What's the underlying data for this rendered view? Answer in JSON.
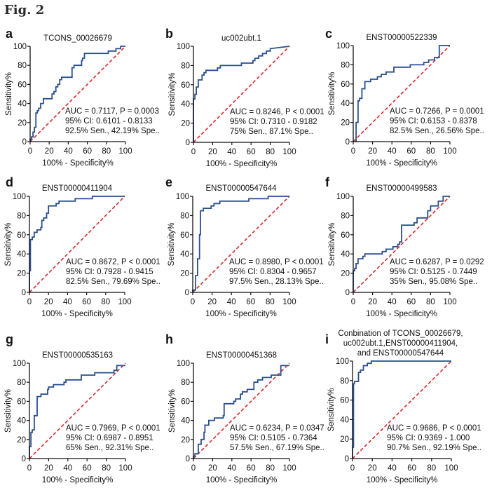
{
  "figure_title": "Fig. 2",
  "colors": {
    "roc_line": "#2a4f8f",
    "reference_line": "#d62a2a",
    "axis": "#111111"
  },
  "chart_data": [
    {
      "panel": "a",
      "type": "line",
      "title": "TCONS_00026679",
      "xlabel": "100% - Specificity%",
      "ylabel": "Sensitivity%",
      "xlim": [
        0,
        100
      ],
      "ylim": [
        0,
        100
      ],
      "xticks": [
        "0",
        "20",
        "40",
        "60",
        "80",
        "100"
      ],
      "yticks": [
        "0",
        "20",
        "40",
        "60",
        "80",
        "100"
      ],
      "annotation": [
        "AUC = 0.7117, P = 0.0003",
        "95% CI: 0.6101 - 0.8133",
        "92.5% Sen., 42.19% Spe.."
      ],
      "show_xlabel": true,
      "series": [
        {
          "name": "ROC",
          "x": [
            0,
            0,
            1.5,
            1.5,
            3,
            3,
            4.5,
            4.5,
            6,
            6,
            7.5,
            7.5,
            9,
            9,
            11,
            11,
            14,
            14,
            23,
            23,
            25,
            25,
            27,
            27,
            29,
            29,
            31,
            31,
            33,
            33,
            44,
            44,
            46,
            46,
            54,
            54,
            55,
            55,
            57,
            57,
            82,
            82,
            90,
            90,
            95,
            95,
            100
          ],
          "y": [
            0,
            2.5,
            2.5,
            5,
            5,
            10,
            10,
            15,
            15,
            30,
            30,
            32.5,
            32.5,
            35,
            35,
            40,
            40,
            45,
            45,
            50,
            50,
            52.5,
            52.5,
            57.5,
            57.5,
            60,
            60,
            65,
            65,
            67.5,
            67.5,
            77.5,
            77.5,
            80,
            80,
            85,
            85,
            87.5,
            87.5,
            92.5,
            92.5,
            95,
            95,
            97.5,
            97.5,
            100,
            100
          ]
        },
        {
          "name": "Reference",
          "x": [
            0,
            100
          ],
          "y": [
            0,
            100
          ]
        }
      ]
    },
    {
      "panel": "b",
      "type": "line",
      "title": "uc002ubt.1",
      "xlabel": "100% - Specificity%",
      "ylabel": "Sensitivity%",
      "xlim": [
        0,
        100
      ],
      "ylim": [
        0,
        100
      ],
      "xticks": [
        "0",
        "20",
        "40",
        "60",
        "80",
        "100"
      ],
      "yticks": [
        "0",
        "20",
        "40",
        "60",
        "80",
        "100"
      ],
      "annotation": [
        "AUC = 0.8246, P < 0.0001",
        "95% CI: 0.7310 - 0.9182",
        "75% Sen., 87.1% Spe.."
      ],
      "show_xlabel": true,
      "series": [
        {
          "name": "ROC",
          "x": [
            0,
            0,
            1.5,
            1.5,
            3,
            3,
            5,
            5,
            9,
            9,
            11,
            11,
            13,
            13,
            25,
            25,
            28,
            28,
            50,
            50,
            62,
            62,
            64,
            64,
            68,
            68,
            72,
            72,
            76,
            76,
            80,
            80,
            100
          ],
          "y": [
            0,
            45,
            45,
            50,
            50,
            57.5,
            57.5,
            65,
            65,
            70,
            70,
            72.5,
            72.5,
            75,
            75,
            77.5,
            77.5,
            80,
            80,
            82.5,
            82.5,
            85,
            85,
            87.5,
            87.5,
            90,
            90,
            92.5,
            92.5,
            95,
            95,
            97.5,
            100
          ]
        },
        {
          "name": "Reference",
          "x": [
            0,
            100
          ],
          "y": [
            0,
            100
          ]
        }
      ]
    },
    {
      "panel": "c",
      "type": "line",
      "title": "ENST00000522339",
      "xlabel": "100% - Specificity%",
      "ylabel": "Sensitivity%",
      "xlim": [
        0,
        100
      ],
      "ylim": [
        0,
        100
      ],
      "xticks": [
        "0",
        "20",
        "40",
        "60",
        "80",
        "100"
      ],
      "yticks": [
        "0",
        "20",
        "40",
        "60",
        "80",
        "100"
      ],
      "annotation": [
        "AUC = 0.7266, P = 0.0001",
        "95% CI: 0.6153 - 0.8378",
        "82.5% Sen., 26.56% Spe.."
      ],
      "show_xlabel": true,
      "series": [
        {
          "name": "ROC",
          "x": [
            2,
            3,
            3,
            5,
            5,
            6.5,
            6.5,
            9,
            9,
            12,
            12,
            18,
            18,
            25,
            25,
            29,
            29,
            34,
            34,
            42,
            42,
            59,
            59,
            73,
            73,
            78,
            78,
            84,
            84,
            89,
            89,
            90,
            90,
            100
          ],
          "y": [
            0,
            0,
            20,
            20,
            42.5,
            42.5,
            45,
            45,
            55,
            55,
            62.5,
            62.5,
            65,
            65,
            67.5,
            67.5,
            70,
            70,
            72.5,
            72.5,
            77.5,
            77.5,
            80,
            80,
            82.5,
            82.5,
            85,
            85,
            87.5,
            87.5,
            100,
            100,
            100,
            100
          ]
        },
        {
          "name": "Reference",
          "x": [
            0,
            100
          ],
          "y": [
            0,
            100
          ]
        }
      ]
    },
    {
      "panel": "d",
      "type": "line",
      "title": "ENST00000411904",
      "xlabel": "100% - Specificity%",
      "ylabel": "Sensitivity%",
      "xlim": [
        0,
        100
      ],
      "ylim": [
        0,
        100
      ],
      "xticks": [
        "0",
        "20",
        "40",
        "60",
        "80",
        "100"
      ],
      "yticks": [
        "0",
        "20",
        "40",
        "60",
        "80",
        "100"
      ],
      "annotation": [
        "AUC = 0.8672, P < 0.0001",
        "95% CI: 0.7928 - 0.9415",
        "82.5% Sen., 79.69% Spe.."
      ],
      "show_xlabel": true,
      "series": [
        {
          "name": "ROC",
          "x": [
            0,
            0,
            1,
            1,
            3,
            3,
            5,
            5,
            8,
            8,
            12,
            12,
            13,
            13,
            15,
            15,
            18,
            18,
            20,
            20,
            28,
            28,
            31,
            31,
            48,
            48,
            66,
            66,
            95,
            95,
            100
          ],
          "y": [
            0,
            22.5,
            22.5,
            55,
            55,
            57.5,
            57.5,
            62.5,
            62.5,
            65,
            65,
            67.5,
            67.5,
            75,
            75,
            77.5,
            77.5,
            82.5,
            82.5,
            90,
            90,
            92.5,
            92.5,
            95,
            95,
            97.5,
            97.5,
            100,
            100,
            100,
            100
          ]
        },
        {
          "name": "Reference",
          "x": [
            0,
            100
          ],
          "y": [
            0,
            100
          ]
        }
      ]
    },
    {
      "panel": "e",
      "type": "line",
      "title": "ENST00000547644",
      "xlabel": "100% - Specificity%",
      "ylabel": "Sensitivity%",
      "xlim": [
        0,
        100
      ],
      "ylim": [
        0,
        100
      ],
      "xticks": [
        "0",
        "20",
        "40",
        "60",
        "80",
        "100"
      ],
      "yticks": [
        "0",
        "20",
        "40",
        "60",
        "80",
        "100"
      ],
      "annotation": [
        "AUC = 0.8980, P < 0.0001",
        "95% CI: 0.8304 - 0.9657",
        "97.5% Sen., 28.13% Spe.."
      ],
      "show_xlabel": true,
      "series": [
        {
          "name": "ROC",
          "x": [
            0,
            0,
            3,
            3,
            5,
            5,
            7,
            7,
            8,
            8,
            11,
            11,
            19,
            19,
            22,
            22,
            28,
            28,
            58,
            58,
            78,
            78,
            100
          ],
          "y": [
            0,
            2.5,
            2.5,
            17.5,
            17.5,
            35,
            35,
            60,
            60,
            85,
            85,
            87.5,
            87.5,
            90,
            90,
            92.5,
            92.5,
            95,
            95,
            97.5,
            97.5,
            100,
            100
          ]
        },
        {
          "name": "Reference",
          "x": [
            0,
            100
          ],
          "y": [
            0,
            100
          ]
        }
      ]
    },
    {
      "panel": "f",
      "type": "line",
      "title": "ENST00000499583",
      "xlabel": "100% - Specificity%",
      "ylabel": "Sensitivity%",
      "xlim": [
        0,
        100
      ],
      "ylim": [
        0,
        100
      ],
      "xticks": [
        "0",
        "20",
        "40",
        "60",
        "80",
        "100"
      ],
      "yticks": [
        "0",
        "20",
        "40",
        "60",
        "80",
        "100"
      ],
      "annotation": [
        "AUC = 0.6287, P = 0.0292",
        "95% CI: 0.5125 - 0.7449",
        "35% Sen., 95.08% Spe.."
      ],
      "show_xlabel": true,
      "series": [
        {
          "name": "ROC",
          "x": [
            0,
            0,
            1.5,
            1.5,
            3,
            3,
            5,
            5,
            10,
            10,
            12,
            12,
            30,
            30,
            34,
            34,
            41,
            41,
            46,
            46,
            48,
            48,
            50,
            50,
            63,
            63,
            66,
            66,
            77,
            77,
            80,
            80,
            88,
            88,
            93,
            93,
            100
          ],
          "y": [
            0,
            22.5,
            22.5,
            25,
            25,
            30,
            30,
            35,
            35,
            37.5,
            37.5,
            40,
            40,
            42.5,
            42.5,
            45,
            45,
            47.5,
            47.5,
            50,
            50,
            52.5,
            52.5,
            70,
            70,
            72.5,
            72.5,
            77.5,
            77.5,
            85,
            85,
            90,
            90,
            95,
            95,
            100,
            100
          ]
        },
        {
          "name": "Reference",
          "x": [
            0,
            100
          ],
          "y": [
            0,
            100
          ]
        }
      ]
    },
    {
      "panel": "g",
      "type": "line",
      "title": "ENST00000535163",
      "xlabel": "100% - Specificity%",
      "ylabel": "Sensitivity%",
      "xlim": [
        0,
        100
      ],
      "ylim": [
        0,
        100
      ],
      "xticks": [
        "0",
        "20",
        "40",
        "60",
        "80",
        "100"
      ],
      "yticks": [
        "0",
        "20",
        "40",
        "60",
        "80",
        "100"
      ],
      "annotation": [
        "AUC = 0.7969, P < 0.0001",
        "95% CI: 0.6987 - 0.8951",
        "65% Sen., 92.31% Spe.."
      ],
      "show_xlabel": true,
      "series": [
        {
          "name": "ROC",
          "x": [
            0,
            0,
            1.5,
            1.5,
            3,
            3,
            5,
            5,
            8,
            8,
            12,
            12,
            19,
            19,
            20,
            20,
            25,
            25,
            36,
            36,
            38,
            38,
            54,
            54,
            68,
            68,
            88,
            88,
            91,
            91,
            100
          ],
          "y": [
            0,
            12.5,
            12.5,
            27.5,
            27.5,
            30,
            30,
            45,
            45,
            65,
            65,
            67.5,
            67.5,
            72.5,
            72.5,
            75,
            75,
            77.5,
            77.5,
            80,
            80,
            82.5,
            82.5,
            87.5,
            87.5,
            90,
            90,
            92.5,
            92.5,
            97.5,
            97.5
          ]
        },
        {
          "name": "Reference",
          "x": [
            0,
            100
          ],
          "y": [
            0,
            100
          ]
        }
      ]
    },
    {
      "panel": "h",
      "type": "line",
      "title": "ENST00000451368",
      "xlabel": "100% - Specificity%",
      "ylabel": "Sensitivity%",
      "xlim": [
        0,
        100
      ],
      "ylim": [
        0,
        100
      ],
      "xticks": [
        "0",
        "20",
        "40",
        "60",
        "80",
        "100"
      ],
      "yticks": [
        "0",
        "20",
        "40",
        "60",
        "80",
        "100"
      ],
      "annotation": [
        "AUC = 0.6234, P = 0.0347",
        "95% CI: 0.5105 - 0.7364",
        "57.5% Sen., 67.19% Spe.."
      ],
      "show_xlabel": true,
      "series": [
        {
          "name": "ROC",
          "x": [
            0,
            0,
            1.5,
            1.5,
            5,
            5,
            8,
            8,
            11,
            11,
            12,
            12,
            16,
            16,
            22,
            22,
            31,
            31,
            32,
            32,
            42,
            42,
            44,
            44,
            49,
            49,
            51,
            51,
            56,
            56,
            63,
            63,
            67,
            67,
            72,
            72,
            81,
            81,
            91,
            91,
            100
          ],
          "y": [
            0,
            2.5,
            2.5,
            5,
            5,
            15,
            15,
            20,
            20,
            27.5,
            27.5,
            35,
            35,
            40,
            40,
            42.5,
            42.5,
            45,
            45,
            57.5,
            57.5,
            60,
            60,
            62.5,
            62.5,
            67.5,
            67.5,
            70,
            70,
            72.5,
            72.5,
            80,
            80,
            82.5,
            82.5,
            85,
            85,
            87.5,
            87.5,
            97.5,
            97.5
          ]
        },
        {
          "name": "Reference",
          "x": [
            0,
            100
          ],
          "y": [
            0,
            100
          ]
        }
      ]
    },
    {
      "panel": "i",
      "type": "line",
      "title": "Conbination of TCONS_00026679,|uc002ubt.1,ENST00000411904,|and ENST00000547644",
      "xlabel": "100% - Specificity%",
      "ylabel": "Sensitivity%",
      "xlim": [
        0,
        100
      ],
      "ylim": [
        0,
        100
      ],
      "xticks": [
        "0",
        "20",
        "40",
        "60",
        "80",
        "100"
      ],
      "yticks": [
        "0",
        "20",
        "40",
        "60",
        "80",
        "100"
      ],
      "annotation": [
        "AUC = 0.9686, P < 0.0001",
        "95% CI: 0.9369 - 1.000",
        "90.7% Sen., 92.19% Spe.."
      ],
      "show_xlabel": true,
      "series": [
        {
          "name": "ROC",
          "x": [
            0,
            0,
            1,
            1,
            2,
            2,
            6,
            6,
            8,
            8,
            11,
            11,
            15,
            15,
            19,
            19,
            100
          ],
          "y": [
            0,
            11.6,
            11.6,
            76.7,
            76.7,
            79.1,
            79.1,
            88.4,
            88.4,
            90.7,
            90.7,
            95.3,
            95.3,
            97.7,
            97.7,
            100,
            100
          ]
        },
        {
          "name": "Reference",
          "x": [
            0,
            100
          ],
          "y": [
            0,
            100
          ]
        }
      ]
    }
  ]
}
